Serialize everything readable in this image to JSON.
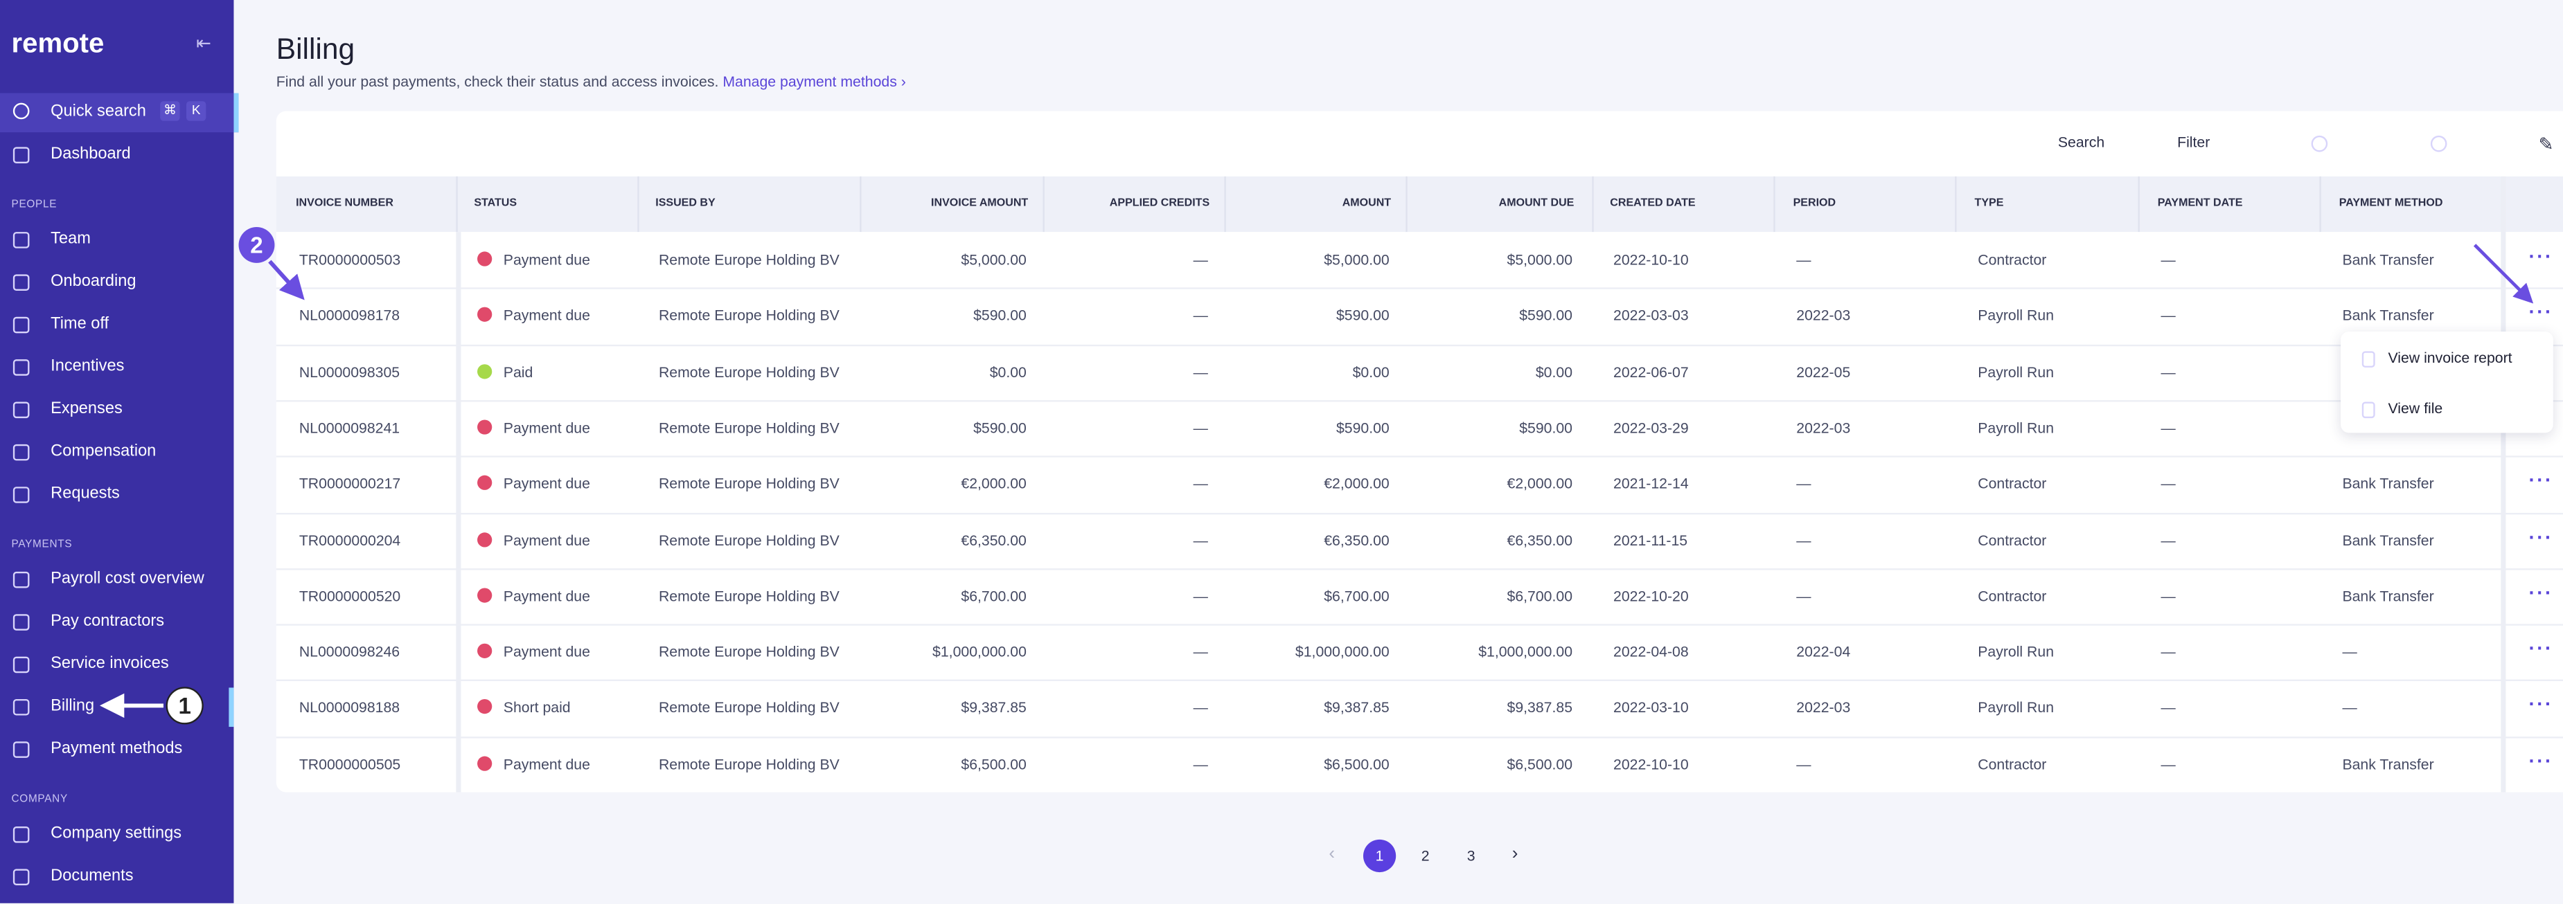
{
  "sidebar": {
    "logo": "remote",
    "quick_search": "Quick search",
    "shortcut": [
      "⌘",
      "K"
    ],
    "groups": [
      {
        "items": [
          "Dashboard"
        ]
      },
      {
        "label": "PEOPLE",
        "items": [
          "Team",
          "Onboarding",
          "Time off",
          "Incentives",
          "Expenses",
          "Compensation",
          "Requests"
        ]
      },
      {
        "label": "PAYMENTS",
        "items": [
          "Payroll cost overview",
          "Pay contractors",
          "Service invoices",
          "Billing",
          "Payment methods"
        ]
      },
      {
        "label": "COMPANY",
        "items": [
          "Company settings",
          "Documents"
        ]
      }
    ]
  },
  "header": {
    "title": "Billing",
    "subtitle": "Find all your past payments, check their status and access invoices.",
    "link": "Manage payment methods"
  },
  "toolbar": [
    "Search",
    "Filter"
  ],
  "table": {
    "columns": [
      "INVOICE NUMBER",
      "STATUS",
      "ISSUED BY",
      "INVOICE AMOUNT",
      "APPLIED CREDITS",
      "AMOUNT",
      "AMOUNT DUE",
      "CREATED DATE",
      "PERIOD",
      "TYPE",
      "PAYMENT DATE",
      "PAYMENT METHOD"
    ],
    "status_colors": {
      "Payment due": "#e04a6a",
      "Paid": "#a6d94a",
      "Short paid": "#e04a6a"
    },
    "rows": [
      [
        "TR0000000503",
        "Payment due",
        "Remote Europe Holding BV",
        "$5,000.00",
        "—",
        "$5,000.00",
        "$5,000.00",
        "2022-10-10",
        "—",
        "Contractor",
        "—",
        "Bank Transfer"
      ],
      [
        "NL0000098178",
        "Payment due",
        "Remote Europe Holding BV",
        "$590.00",
        "—",
        "$590.00",
        "$590.00",
        "2022-03-03",
        "2022-03",
        "Payroll Run",
        "—",
        "Bank Transfer"
      ],
      [
        "NL0000098305",
        "Paid",
        "Remote Europe Holding BV",
        "$0.00",
        "—",
        "$0.00",
        "$0.00",
        "2022-06-07",
        "2022-05",
        "Payroll Run",
        "—",
        null
      ],
      [
        "NL0000098241",
        "Payment due",
        "Remote Europe Holding BV",
        "$590.00",
        "—",
        "$590.00",
        "$590.00",
        "2022-03-29",
        "2022-03",
        "Payroll Run",
        "—",
        null
      ],
      [
        "TR0000000217",
        "Payment due",
        "Remote Europe Holding BV",
        "€2,000.00",
        "—",
        "€2,000.00",
        "€2,000.00",
        "2021-12-14",
        "—",
        "Contractor",
        "—",
        "Bank Transfer"
      ],
      [
        "TR0000000204",
        "Payment due",
        "Remote Europe Holding BV",
        "€6,350.00",
        "—",
        "€6,350.00",
        "€6,350.00",
        "2021-11-15",
        "—",
        "Contractor",
        "—",
        "Bank Transfer"
      ],
      [
        "TR0000000520",
        "Payment due",
        "Remote Europe Holding BV",
        "$6,700.00",
        "—",
        "$6,700.00",
        "$6,700.00",
        "2022-10-20",
        "—",
        "Contractor",
        "—",
        "Bank Transfer"
      ],
      [
        "NL0000098246",
        "Payment due",
        "Remote Europe Holding BV",
        "$1,000,000.00",
        "—",
        "$1,000,000.00",
        "$1,000,000.00",
        "2022-04-08",
        "2022-04",
        "Payroll Run",
        "—",
        "—"
      ],
      [
        "NL0000098188",
        "Short paid",
        "Remote Europe Holding BV",
        "$9,387.85",
        "—",
        "$9,387.85",
        "$9,387.85",
        "2022-03-10",
        "2022-03",
        "Payroll Run",
        "—",
        "—"
      ],
      [
        "TR0000000505",
        "Payment due",
        "Remote Europe Holding BV",
        "$6,500.00",
        "—",
        "$6,500.00",
        "$6,500.00",
        "2022-10-10",
        "—",
        "Contractor",
        "—",
        "Bank Transfer"
      ]
    ]
  },
  "menu": [
    "View invoice report",
    "View file"
  ],
  "pagination": [
    "1",
    "2",
    "3"
  ],
  "annotations": [
    "1",
    "2"
  ]
}
